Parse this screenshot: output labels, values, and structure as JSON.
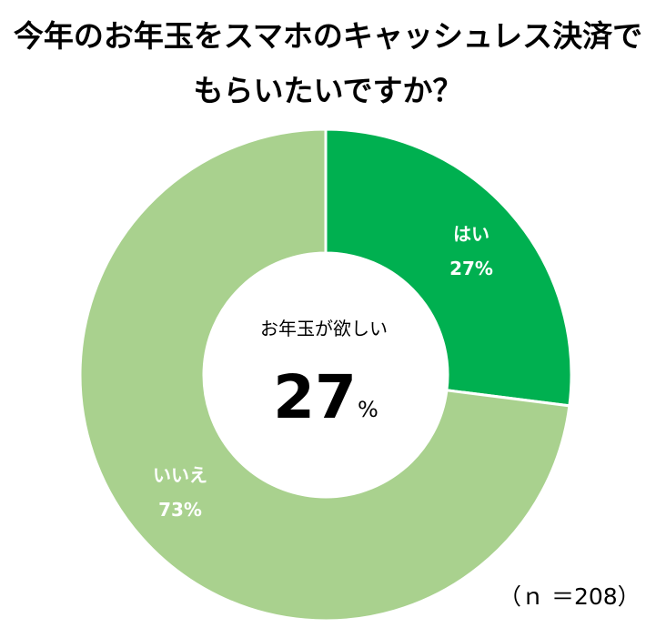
{
  "title_lines": [
    "今年のお年玉をスマホのキャッシュレス決済で",
    "もらいたいですか？"
  ],
  "center_caption": "お年玉が欲しい",
  "center_value": "27",
  "center_unit": "%",
  "sample_note": "（ｎ ＝208）",
  "chart_data": {
    "type": "pie",
    "title": "今年のお年玉をスマホのキャッシュレス決済でもらいたいですか？",
    "categories": [
      "はい",
      "いいえ"
    ],
    "values": [
      27,
      73
    ],
    "value_labels": [
      "27%",
      "73%"
    ],
    "colors": [
      "#00b050",
      "#a9d18e"
    ],
    "donut": true,
    "legend": "none"
  }
}
